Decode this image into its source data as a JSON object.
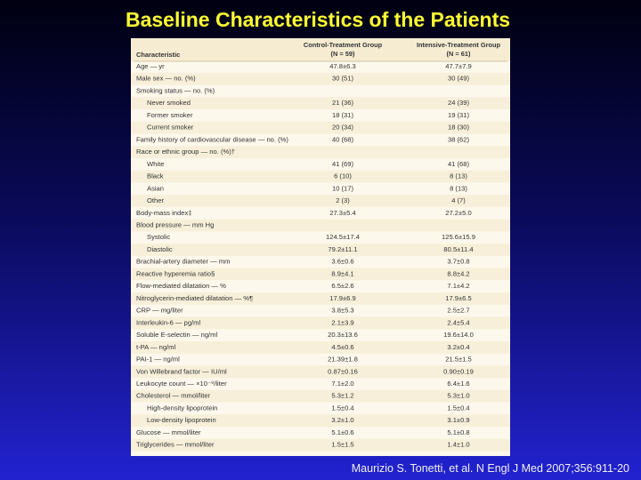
{
  "title": "Baseline Characteristics of the Patients",
  "citation": "Maurizio S. Tonetti, et al. N Engl J Med 2007;356:911-20",
  "table": {
    "header": [
      [
        "Characteristic"
      ],
      [
        "Control-Treatment Group",
        "(N = 59)"
      ],
      [
        "Intensive-Treatment Group",
        "(N = 61)"
      ]
    ],
    "rows": [
      [
        "Age — yr",
        "47.8±6.3",
        "47.7±7.9"
      ],
      [
        "Male sex — no. (%)",
        "30 (51)",
        "30 (49)"
      ],
      [
        "Smoking status — no. (%)"
      ],
      [
        "Never smoked",
        "21 (36)",
        "24 (39)"
      ],
      [
        "Former smoker",
        "18 (31)",
        "19 (31)"
      ],
      [
        "Current smoker",
        "20 (34)",
        "18 (30)"
      ],
      [
        "Family history of cardiovascular disease — no. (%)",
        "40 (68)",
        "38 (62)"
      ],
      [
        "Race or ethnic group — no. (%)†"
      ],
      [
        "White",
        "41 (69)",
        "41 (68)"
      ],
      [
        "Black",
        "6 (10)",
        "8 (13)"
      ],
      [
        "Asian",
        "10 (17)",
        "8 (13)"
      ],
      [
        "Other",
        "2 (3)",
        "4 (7)"
      ],
      [
        "Body-mass index‡",
        "27.3±5.4",
        "27.2±5.0"
      ],
      [
        "Blood pressure — mm Hg"
      ],
      [
        "Systolic",
        "124.5±17.4",
        "125.6±15.9"
      ],
      [
        "Diastolic",
        "79.2±11.1",
        "80.5±11.4"
      ],
      [
        "Brachial-artery diameter — mm",
        "3.6±0.6",
        "3.7±0.8"
      ],
      [
        "Reactive hyperemia ratio§",
        "8.9±4.1",
        "8.8±4.2"
      ],
      [
        "Flow-mediated dilatation — %",
        "6.5±2.6",
        "7.1±4.2"
      ],
      [
        "Nitroglycerin-mediated dilatation — %¶",
        "17.9±6.9",
        "17.9±6.5"
      ],
      [
        "CRP — mg/liter",
        "3.8±5.3",
        "2.5±2.7"
      ],
      [
        "Interleukin-6 — pg/ml",
        "2.1±3.9",
        "2.4±5.4"
      ],
      [
        "Soluble E-selectin — ng/ml",
        "20.3±13.6",
        "19.6±14.0"
      ],
      [
        "t-PA — ng/ml",
        "4.5±0.6",
        "3.2±0.4"
      ],
      [
        "PAI-1 — ng/ml",
        "21.39±1.8",
        "21.5±1.5"
      ],
      [
        "Von Willebrand factor — IU/ml",
        "0.87±0.16",
        "0.90±0.19"
      ],
      [
        "Leukocyte count — ×10⁻⁹/liter",
        "7.1±2.0",
        "6.4±1.6"
      ],
      [
        "Cholesterol — mmol/liter",
        "5.3±1.2",
        "5.3±1.0"
      ],
      [
        "High-density lipoprotein",
        "1.5±0.4",
        "1.5±0.4"
      ],
      [
        "Low-density lipoprotein",
        "3.2±1.0",
        "3.1±0.9"
      ],
      [
        "Glucose — mmol/liter",
        "5.1±0.6",
        "5.1±0.8"
      ],
      [
        "Triglycerides — mmol/liter",
        "1.5±1.5",
        "1.4±1.0"
      ]
    ]
  }
}
